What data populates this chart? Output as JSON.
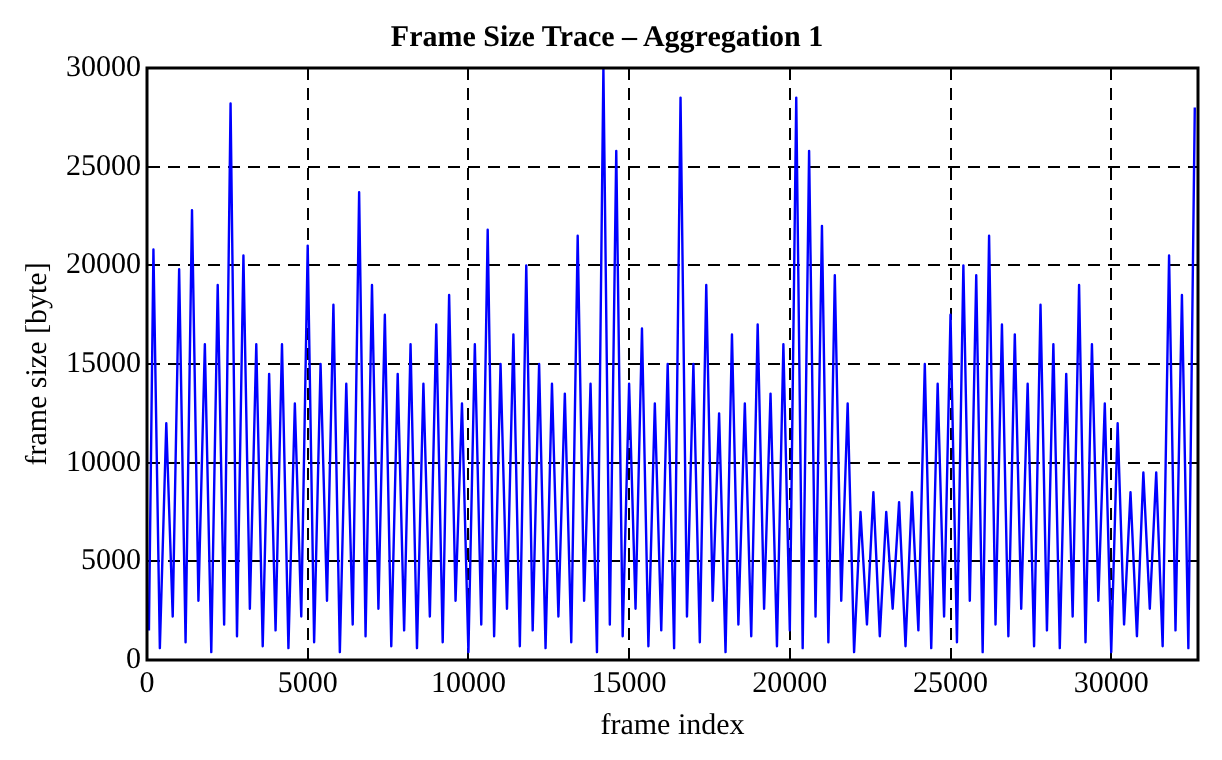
{
  "chart_data": {
    "type": "line",
    "title": "Frame Size Trace – Aggregation 1",
    "xlabel": "frame index",
    "ylabel": "frame size [byte]",
    "x": [
      60,
      200,
      400,
      600,
      800,
      1000,
      1200,
      1400,
      1600,
      1800,
      2000,
      2200,
      2400,
      2600,
      2800,
      3000,
      3200,
      3400,
      3600,
      3800,
      4000,
      4200,
      4400,
      4600,
      4800,
      5000,
      5200,
      5400,
      5600,
      5800,
      6000,
      6200,
      6400,
      6600,
      6800,
      7000,
      7200,
      7400,
      7600,
      7800,
      8000,
      8200,
      8400,
      8600,
      8800,
      9000,
      9200,
      9400,
      9600,
      9800,
      10000,
      10200,
      10400,
      10600,
      10800,
      11000,
      11200,
      11400,
      11600,
      11800,
      12000,
      12200,
      12400,
      12600,
      12800,
      13000,
      13200,
      13400,
      13600,
      13800,
      14000,
      14200,
      14400,
      14600,
      14800,
      15000,
      15200,
      15400,
      15600,
      15800,
      16000,
      16200,
      16400,
      16600,
      16800,
      17000,
      17200,
      17400,
      17600,
      17800,
      18000,
      18200,
      18400,
      18600,
      18800,
      19000,
      19200,
      19400,
      19600,
      19800,
      20000,
      20200,
      20400,
      20600,
      20800,
      21000,
      21200,
      21400,
      21600,
      21800,
      22000,
      22200,
      22400,
      22600,
      22800,
      23000,
      23200,
      23400,
      23600,
      23800,
      24000,
      24200,
      24400,
      24600,
      24800,
      25000,
      25200,
      25400,
      25600,
      25800,
      26000,
      26200,
      26400,
      26600,
      26800,
      27000,
      27200,
      27400,
      27600,
      27800,
      28000,
      28200,
      28400,
      28600,
      28800,
      29000,
      29200,
      29400,
      29600,
      29800,
      30000,
      30200,
      30400,
      30600,
      30800,
      31000,
      31200,
      31400,
      31600,
      31800,
      32000,
      32200,
      32400,
      32600
    ],
    "series": [
      {
        "color": "#0000ff",
        "values": [
          1500,
          20800,
          600,
          12000,
          2200,
          19800,
          900,
          22800,
          3000,
          16000,
          400,
          19000,
          1800,
          28200,
          1200,
          20500,
          2600,
          16000,
          700,
          14500,
          1500,
          16000,
          600,
          13000,
          2200,
          21000,
          900,
          15000,
          3000,
          18000,
          400,
          14000,
          1800,
          23700,
          1200,
          19000,
          2600,
          17500,
          700,
          14500,
          1500,
          16000,
          600,
          14000,
          2200,
          17000,
          900,
          18500,
          3000,
          13000,
          400,
          16000,
          1800,
          21800,
          1200,
          15000,
          2600,
          16500,
          700,
          20000,
          1500,
          15000,
          600,
          14000,
          2200,
          13500,
          900,
          21500,
          3000,
          14000,
          400,
          30000,
          1800,
          25800,
          1200,
          14000,
          2600,
          16800,
          700,
          13000,
          1500,
          15000,
          600,
          28500,
          2200,
          15000,
          900,
          19000,
          3000,
          12500,
          400,
          16500,
          1800,
          13000,
          1200,
          17000,
          2600,
          13500,
          700,
          16000,
          1500,
          28500,
          600,
          25800,
          2200,
          22000,
          900,
          19500,
          3000,
          13000,
          400,
          7500,
          1800,
          8500,
          1200,
          7500,
          2600,
          8000,
          700,
          8500,
          1500,
          15000,
          600,
          14000,
          2200,
          17500,
          900,
          20000,
          3000,
          19500,
          400,
          21500,
          1800,
          17000,
          1200,
          16500,
          2600,
          14000,
          700,
          18000,
          1500,
          16000,
          600,
          14500,
          2200,
          19000,
          900,
          16000,
          3000,
          13000,
          400,
          12000,
          1800,
          8500,
          1200,
          9500,
          2600,
          9500,
          700,
          20500,
          1500,
          18500,
          600,
          28000
        ]
      }
    ],
    "xlim": [
      0,
      32700
    ],
    "xticks": [
      0,
      5000,
      10000,
      15000,
      20000,
      25000,
      30000
    ],
    "ylim": [
      0,
      30000
    ],
    "yticks": [
      0,
      5000,
      10000,
      15000,
      20000,
      25000,
      30000
    ],
    "grid": true,
    "marker": "none",
    "line_style": "solid",
    "legend": false
  }
}
